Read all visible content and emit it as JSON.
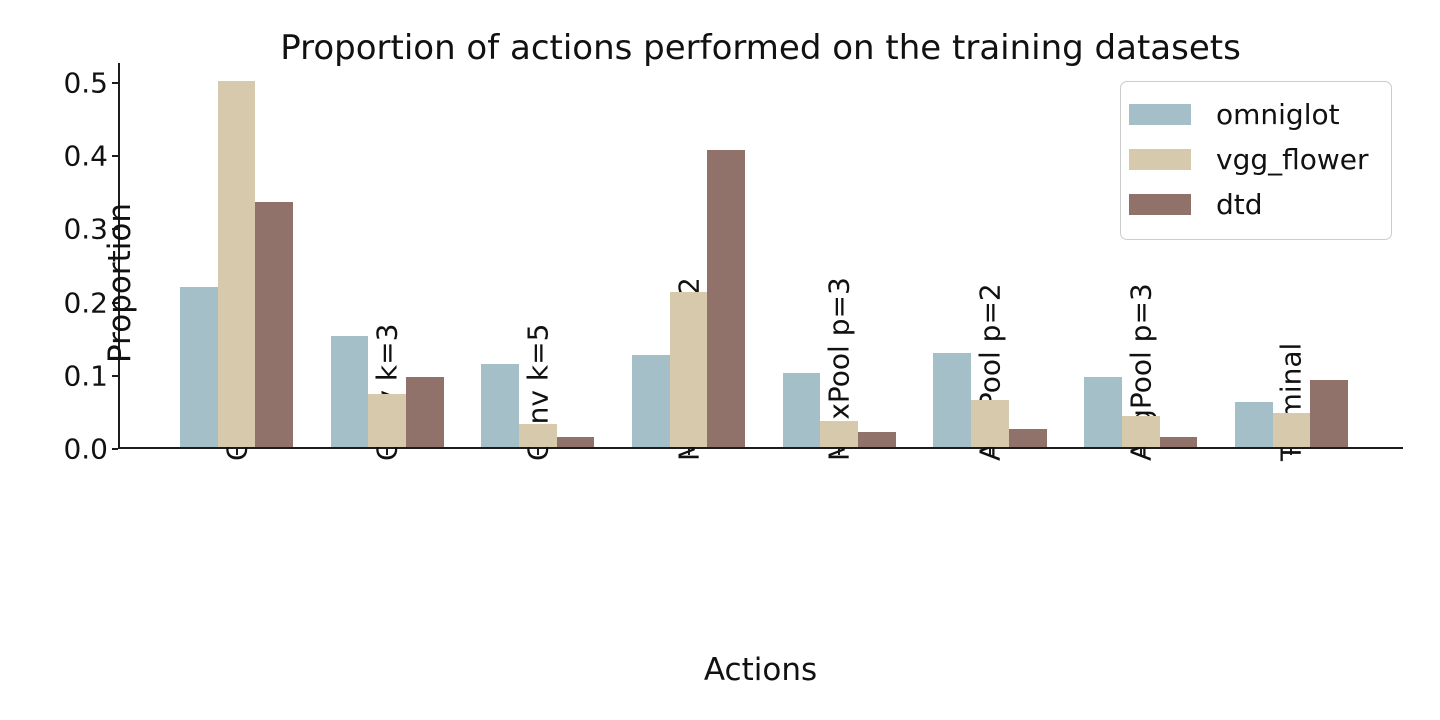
{
  "chart_data": {
    "type": "bar",
    "title": "Proportion of actions performed on the training datasets",
    "xlabel": "Actions",
    "ylabel": "Proportion",
    "categories": [
      "Conv k=1",
      "Conv k=3",
      "Conv k=5",
      "MaxPool p=2",
      "MaxPool p=3",
      "AvgPool p=2",
      "AvgPool p=3",
      "Terminal"
    ],
    "series": [
      {
        "name": "omniglot",
        "color": "#a4bfc7",
        "values": [
          0.219,
          0.152,
          0.114,
          0.125,
          0.101,
          0.129,
          0.096,
          0.061
        ]
      },
      {
        "name": "vgg_flower",
        "color": "#d6c9ac",
        "values": [
          0.5,
          0.072,
          0.031,
          0.211,
          0.035,
          0.064,
          0.042,
          0.046
        ]
      },
      {
        "name": "dtd",
        "color": "#90726a",
        "values": [
          0.335,
          0.095,
          0.014,
          0.405,
          0.021,
          0.024,
          0.013,
          0.091
        ]
      }
    ],
    "ylim": [
      0,
      0.527
    ],
    "yticks": [
      0.0,
      0.1,
      0.2,
      0.3,
      0.4,
      0.5
    ],
    "ytick_labels": [
      "0.0",
      "0.1",
      "0.2",
      "0.3",
      "0.4",
      "0.5"
    ],
    "legend_position": "upper right",
    "grid": false,
    "background_color": "#ffffff",
    "axis_color": "#1c1c1c"
  }
}
